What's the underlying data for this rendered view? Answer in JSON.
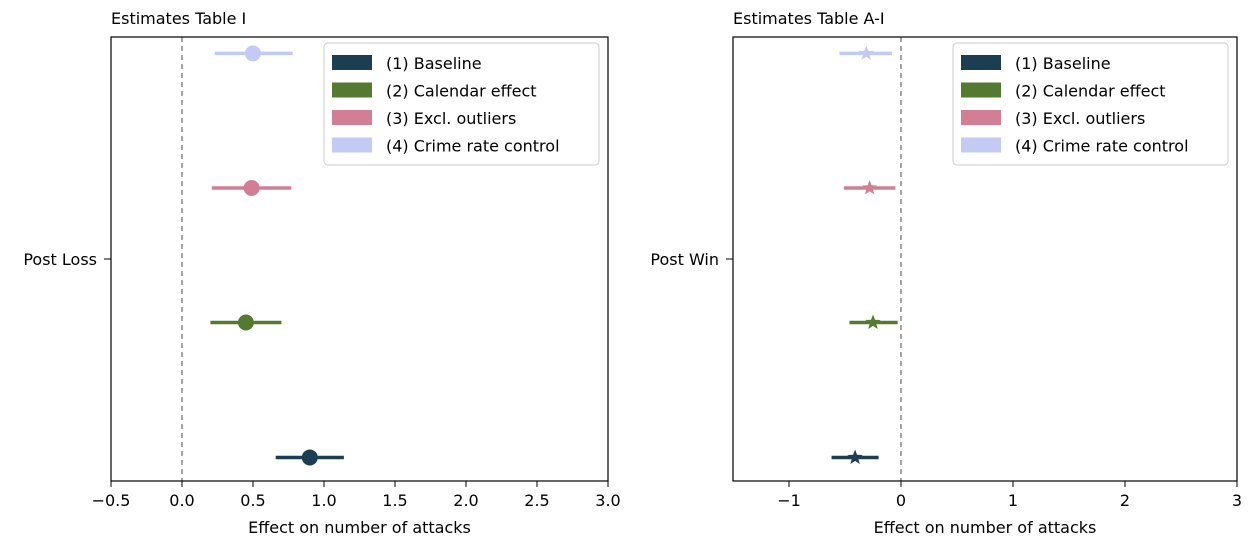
{
  "chart_data": [
    {
      "type": "forest",
      "title": "Estimates Table I",
      "xlabel": "Effect on number of attacks",
      "ylabel": "",
      "xlim": [
        -0.5,
        3.0
      ],
      "xticks": [
        -0.5,
        0.0,
        0.5,
        1.0,
        1.5,
        2.0,
        2.5,
        3.0
      ],
      "xtick_labels": [
        "−0.5",
        "0.0",
        "0.5",
        "1.0",
        "1.5",
        "2.0",
        "2.5",
        "3.0"
      ],
      "category": "Post Loss",
      "marker": "circle",
      "reference_line": 0,
      "grid": false,
      "legend_position": "top-right",
      "series": [
        {
          "name": "(1) Baseline",
          "color": "#1b3e52",
          "estimate": 0.9,
          "ci": [
            0.66,
            1.14
          ]
        },
        {
          "name": "(2) Calendar effect",
          "color": "#537a30",
          "estimate": 0.45,
          "ci": [
            0.2,
            0.7
          ]
        },
        {
          "name": "(3) Excl. outliers",
          "color": "#d27f95",
          "estimate": 0.49,
          "ci": [
            0.21,
            0.77
          ]
        },
        {
          "name": "(4) Crime rate control",
          "color": "#c3cbf5",
          "estimate": 0.5,
          "ci": [
            0.23,
            0.78
          ]
        }
      ]
    },
    {
      "type": "forest",
      "title": "Estimates Table A-I",
      "xlabel": "Effect on number of attacks",
      "ylabel": "",
      "xlim": [
        -1.5,
        3.0
      ],
      "xticks": [
        -1,
        0,
        1,
        2,
        3
      ],
      "xtick_labels": [
        "−1",
        "0",
        "1",
        "2",
        "3"
      ],
      "category": "Post Win",
      "marker": "star",
      "reference_line": 0,
      "grid": false,
      "legend_position": "top-right",
      "series": [
        {
          "name": "(1) Baseline",
          "color": "#1b3e52",
          "estimate": -0.41,
          "ci": [
            -0.62,
            -0.2
          ]
        },
        {
          "name": "(2) Calendar effect",
          "color": "#537a30",
          "estimate": -0.25,
          "ci": [
            -0.46,
            -0.03
          ]
        },
        {
          "name": "(3) Excl. outliers",
          "color": "#d27f95",
          "estimate": -0.28,
          "ci": [
            -0.51,
            -0.05
          ]
        },
        {
          "name": "(4) Crime rate control",
          "color": "#c3cbf5",
          "estimate": -0.31,
          "ci": [
            -0.55,
            -0.08
          ]
        }
      ]
    }
  ]
}
